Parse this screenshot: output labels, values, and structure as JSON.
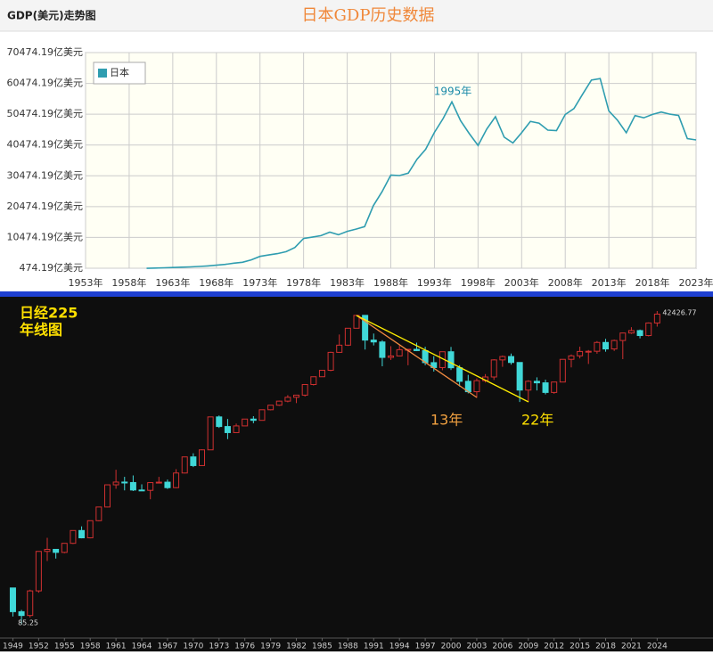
{
  "chart_data": [
    {
      "type": "line",
      "header": "GDP(美元)走势图",
      "title": "日本GDP历史数据",
      "x": [
        1960,
        1961,
        1962,
        1963,
        1964,
        1965,
        1966,
        1967,
        1968,
        1969,
        1970,
        1971,
        1972,
        1973,
        1974,
        1975,
        1976,
        1977,
        1978,
        1979,
        1980,
        1981,
        1982,
        1983,
        1984,
        1985,
        1986,
        1987,
        1988,
        1989,
        1990,
        1991,
        1992,
        1993,
        1994,
        1995,
        1996,
        1997,
        1998,
        1999,
        2000,
        2001,
        2002,
        2003,
        2004,
        2005,
        2006,
        2007,
        2008,
        2009,
        2010,
        2011,
        2012,
        2013,
        2014,
        2015,
        2016,
        2017,
        2018,
        2019,
        2020,
        2021,
        2022,
        2023
      ],
      "series": [
        {
          "name": "日本",
          "color": "#2f9db0",
          "values": [
            443,
            535,
            608,
            697,
            818,
            910,
            1059,
            1239,
            1466,
            1724,
            2123,
            2403,
            3179,
            4321,
            4797,
            5211,
            5853,
            7219,
            10133,
            10555,
            11053,
            12181,
            11346,
            12436,
            13183,
            13983,
            20784,
            25320,
            30712,
            30544,
            31329,
            35844,
            39089,
            44547,
            49070,
            54491,
            48336,
            44147,
            40323,
            45625,
            49683,
            43037,
            41154,
            44457,
            48151,
            47554,
            45303,
            45153,
            50379,
            52312,
            57000,
            61574,
            62032,
            51557,
            48504,
            44449,
            50036,
            49308,
            50406,
            51181,
            50480,
            50058,
            42560,
            42129
          ]
        }
      ],
      "xlim": [
        1953,
        2023
      ],
      "xticks": [
        {
          "value": 1953,
          "label": "1953年"
        },
        {
          "value": 1958,
          "label": "1958年"
        },
        {
          "value": 1963,
          "label": "1963年"
        },
        {
          "value": 1968,
          "label": "1968年"
        },
        {
          "value": 1973,
          "label": "1973年"
        },
        {
          "value": 1978,
          "label": "1978年"
        },
        {
          "value": 1983,
          "label": "1983年"
        },
        {
          "value": 1988,
          "label": "1988年"
        },
        {
          "value": 1993,
          "label": "1993年"
        },
        {
          "value": 1998,
          "label": "1998年"
        },
        {
          "value": 2003,
          "label": "2003年"
        },
        {
          "value": 2008,
          "label": "2008年"
        },
        {
          "value": 2013,
          "label": "2013年"
        },
        {
          "value": 2018,
          "label": "2018年"
        },
        {
          "value": 2023,
          "label": "2023年"
        }
      ],
      "ylim": [
        474.19,
        70474.19
      ],
      "yticks": [
        {
          "value": 474.19,
          "label": "474.19亿美元"
        },
        {
          "value": 10474.19,
          "label": "10474.19亿美元"
        },
        {
          "value": 20474.19,
          "label": "20474.19亿美元"
        },
        {
          "value": 30474.19,
          "label": "30474.19亿美元"
        },
        {
          "value": 40474.19,
          "label": "40474.19亿美元"
        },
        {
          "value": 50474.19,
          "label": "50474.19亿美元"
        },
        {
          "value": 60474.19,
          "label": "60474.19亿美元"
        },
        {
          "value": 70474.19,
          "label": "70474.19亿美元"
        }
      ],
      "grid": true,
      "legend": "upper left",
      "annotations": [
        "1995年"
      ]
    },
    {
      "type": "candlestick",
      "title": "日经225",
      "subtitle": "年线图",
      "log_scale": true,
      "up_color": "#d03030",
      "down_color": "#40d8d8",
      "x": [
        1949,
        1950,
        1951,
        1952,
        1953,
        1954,
        1955,
        1956,
        1957,
        1958,
        1959,
        1960,
        1961,
        1962,
        1963,
        1964,
        1965,
        1966,
        1967,
        1968,
        1969,
        1970,
        1971,
        1972,
        1973,
        1974,
        1975,
        1976,
        1977,
        1978,
        1979,
        1980,
        1981,
        1982,
        1983,
        1984,
        1985,
        1986,
        1987,
        1988,
        1989,
        1990,
        1991,
        1992,
        1993,
        1994,
        1995,
        1996,
        1997,
        1998,
        1999,
        2000,
        2001,
        2002,
        2003,
        2004,
        2005,
        2006,
        2007,
        2008,
        2009,
        2010,
        2011,
        2012,
        2013,
        2014,
        2015,
        2016,
        2017,
        2018,
        2019,
        2020,
        2021,
        2022,
        2023,
        2024
      ],
      "open": [
        176,
        110,
        102,
        166,
        363,
        378,
        356,
        426,
        549,
        475,
        667,
        875,
        1357,
        1433,
        1420,
        1225,
        1217,
        1418,
        1430,
        1283,
        1715,
        2359,
        1987,
        2714,
        5208,
        4307,
        3817,
        4359,
        4991,
        4866,
        6002,
        6569,
        7116,
        7682,
        8017,
        9894,
        11543,
        13113,
        18701,
        21564,
        30159,
        38916,
        23849,
        22984,
        16925,
        17417,
        19723,
        19868,
        19361,
        15259,
        13842,
        18934,
        13786,
        10543,
        8579,
        10677,
        11489,
        16111,
        17226,
        15308,
        8860,
        10546,
        10229,
        8455,
        10395,
        16291,
        17451,
        19034,
        19114,
        22765,
        20015,
        23657,
        27444,
        28792,
        26095,
        33464
      ],
      "high": [
        176,
        114,
        170,
        363,
        475,
        380,
        426,
        550,
        596,
        667,
        875,
        1357,
        1829,
        1590,
        1634,
        1370,
        1418,
        1589,
        1506,
        1851,
        2359,
        2534,
        2740,
        5208,
        5359,
        5001,
        4564,
        4991,
        5287,
        6002,
        6590,
        7188,
        8019,
        8027,
        9894,
        11577,
        13129,
        18937,
        26646,
        30159,
        38957,
        38916,
        27147,
        23802,
        21148,
        21553,
        20023,
        22667,
        20910,
        17352,
        18934,
        20833,
        14529,
        11980,
        11162,
        12164,
        16345,
        17563,
        18262,
        15308,
        10768,
        11408,
        10892,
        10434,
        16320,
        17936,
        20953,
        19593,
        23382,
        24448,
        24092,
        27602,
        30795,
        29389,
        33853,
        42426.77
      ],
      "low": [
        100,
        85.25,
        98,
        160,
        300,
        315,
        350,
        420,
        470,
        470,
        660,
        870,
        1255,
        1216,
        1200,
        1203,
        1020,
        1400,
        1250,
        1270,
        1700,
        1929,
        1981,
        2712,
        4188,
        3355,
        3814,
        4359,
        4597,
        4866,
        5930,
        6475,
        6957,
        6850,
        7803,
        9703,
        11543,
        12881,
        18544,
        21217,
        30159,
        19782,
        21456,
        14194,
        16078,
        17370,
        14485,
        19162,
        14488,
        12787,
        13122,
        13182,
        9504,
        8303,
        7604,
        10300,
        10825,
        14045,
        14670,
        6995,
        7055,
        8797,
        8136,
        8238,
        10395,
        13886,
        16593,
        14865,
        18225,
        18949,
        19241,
        16358,
        26954,
        24681,
        25662,
        31156
      ],
      "close": [
        110,
        102,
        166,
        363,
        378,
        356,
        426,
        549,
        475,
        667,
        875,
        1357,
        1433,
        1420,
        1225,
        1217,
        1418,
        1430,
        1283,
        1715,
        2359,
        1987,
        2714,
        5208,
        4307,
        3817,
        4359,
        4991,
        4866,
        6002,
        6569,
        7116,
        7682,
        8017,
        9894,
        11543,
        13113,
        18701,
        21564,
        30159,
        38916,
        23849,
        22984,
        16925,
        17417,
        19723,
        19868,
        19361,
        15259,
        13842,
        18934,
        13786,
        10543,
        8579,
        10677,
        11489,
        16111,
        17226,
        15308,
        8860,
        10546,
        10229,
        8455,
        10395,
        16291,
        17451,
        19034,
        19114,
        22765,
        20015,
        23657,
        27444,
        28792,
        26095,
        33464,
        39895
      ],
      "xlim": [
        1947.5,
        2030.5
      ],
      "ylim": [
        70,
        48000
      ],
      "xticks": [
        1949,
        1952,
        1955,
        1958,
        1961,
        1964,
        1967,
        1970,
        1973,
        1976,
        1979,
        1982,
        1985,
        1988,
        1991,
        1994,
        1997,
        2000,
        2003,
        2006,
        2009,
        2012,
        2015,
        2018,
        2021,
        2024
      ],
      "annotations": [
        "13年",
        "22年"
      ]
    }
  ]
}
